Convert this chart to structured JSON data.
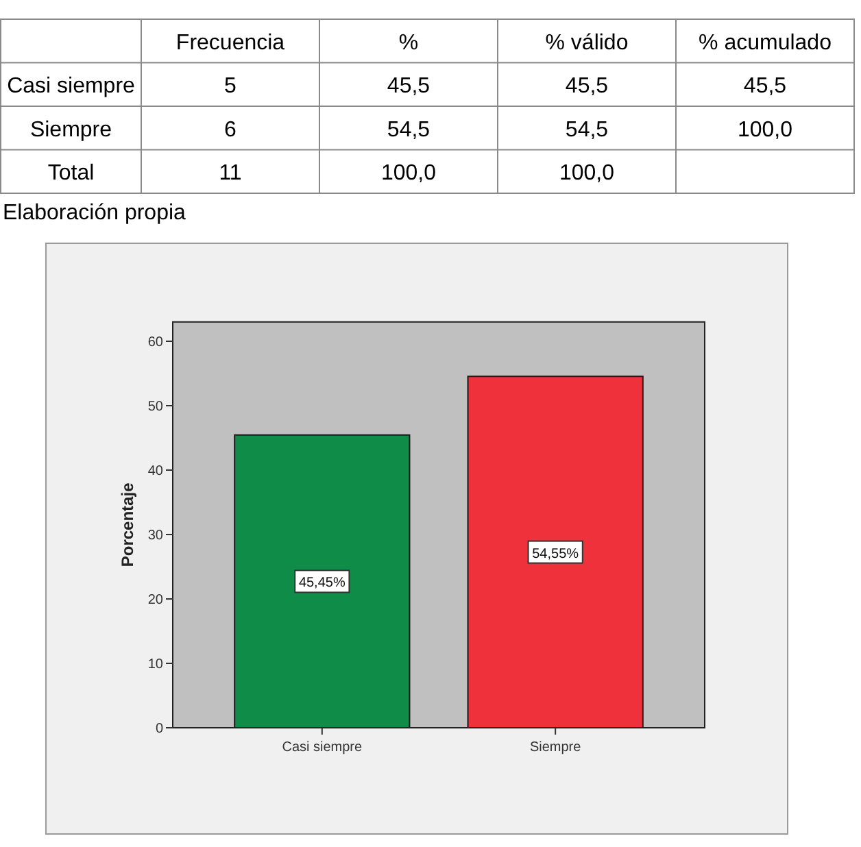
{
  "chart_data": [
    {
      "type": "other",
      "categories": [
        "Frecuencia",
        "%",
        "% válido",
        "% acumulado"
      ],
      "y_categories": [
        "Casi siempre",
        "Siempre",
        "Total"
      ],
      "cell_labels": [
        [
          "5",
          "45,5",
          "45,5",
          "45,5"
        ],
        [
          "6",
          "54,5",
          "54,5",
          "100,0"
        ],
        [
          "11",
          "100,0",
          "100,0",
          null
        ]
      ],
      "annotations": [
        "Elaboración propia"
      ]
    },
    {
      "type": "bar",
      "categories": [
        "Casi siempre",
        "Siempre"
      ],
      "values": [
        45.45,
        54.55
      ],
      "colors": [
        "#0f8c48",
        "#ee313b"
      ],
      "value_labels": [
        "45,45%",
        "54,55%"
      ],
      "ylabel": "Porcentaje",
      "ylim": [
        0,
        63
      ],
      "yticks": [
        0,
        10,
        20,
        30,
        40,
        50,
        60
      ]
    }
  ]
}
